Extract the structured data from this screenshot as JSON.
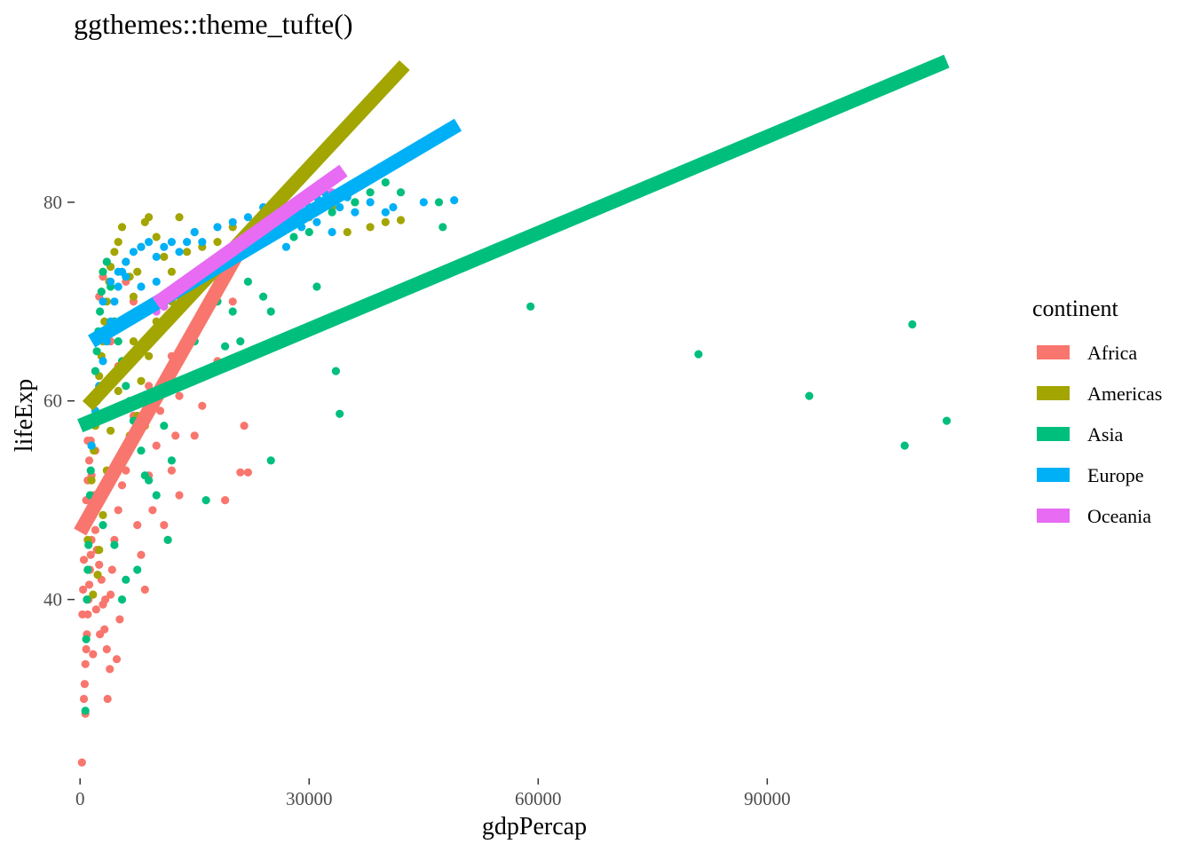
{
  "chart_data": {
    "type": "scatter",
    "title": "ggthemes::theme_tufte()",
    "xlabel": "gdpPercap",
    "ylabel": "lifeExp",
    "xlim": [
      -2000,
      121000
    ],
    "ylim": [
      22,
      95
    ],
    "x_ticks": [
      0,
      30000,
      60000,
      90000
    ],
    "x_tick_labels": [
      "0",
      "30000",
      "60000",
      "90000"
    ],
    "y_ticks": [
      40,
      60,
      80
    ],
    "y_tick_labels": [
      "40",
      "60",
      "80"
    ],
    "grid": false,
    "legend": {
      "title": "continent",
      "position": "right",
      "entries": [
        "Africa",
        "Americas",
        "Asia",
        "Europe",
        "Oceania"
      ]
    },
    "series": [
      {
        "name": "Africa",
        "color": "#F8766D",
        "fit_line": {
          "x": [
            0,
            21500
          ],
          "y": [
            46.8,
            76.0
          ]
        },
        "points": [
          [
            241,
            23.6
          ],
          [
            500,
            30.0
          ],
          [
            600,
            31.5
          ],
          [
            700,
            33.5
          ],
          [
            800,
            35.0
          ],
          [
            900,
            36.5
          ],
          [
            1000,
            38.5
          ],
          [
            1100,
            40.0
          ],
          [
            1200,
            41.5
          ],
          [
            1300,
            43.0
          ],
          [
            1400,
            44.5
          ],
          [
            1500,
            46.0
          ],
          [
            600,
            48.0
          ],
          [
            800,
            50.0
          ],
          [
            1000,
            52.0
          ],
          [
            1200,
            54.0
          ],
          [
            1400,
            56.0
          ],
          [
            1600,
            58.0
          ],
          [
            1800,
            50.5
          ],
          [
            2000,
            47.0
          ],
          [
            2200,
            45.0
          ],
          [
            2500,
            43.5
          ],
          [
            2800,
            42.0
          ],
          [
            3000,
            39.5
          ],
          [
            3200,
            37.0
          ],
          [
            3500,
            35.0
          ],
          [
            3600,
            30.0
          ],
          [
            3900,
            33.0
          ],
          [
            4000,
            40.5
          ],
          [
            4200,
            43.0
          ],
          [
            4500,
            46.0
          ],
          [
            5000,
            49.0
          ],
          [
            5500,
            51.5
          ],
          [
            6000,
            53.0
          ],
          [
            6500,
            56.0
          ],
          [
            7000,
            58.5
          ],
          [
            7500,
            47.5
          ],
          [
            8000,
            44.5
          ],
          [
            8500,
            41.0
          ],
          [
            9000,
            52.5
          ],
          [
            9500,
            49.0
          ],
          [
            10000,
            55.5
          ],
          [
            10500,
            59.0
          ],
          [
            11000,
            47.5
          ],
          [
            11500,
            46.0
          ],
          [
            12000,
            53.0
          ],
          [
            12500,
            56.5
          ],
          [
            13000,
            50.5
          ],
          [
            14000,
            62.0
          ],
          [
            15000,
            56.5
          ],
          [
            16000,
            59.5
          ],
          [
            18000,
            64.0
          ],
          [
            19000,
            50.0
          ],
          [
            20000,
            70.0
          ],
          [
            21000,
            52.8
          ],
          [
            21500,
            57.5
          ],
          [
            22000,
            52.8
          ],
          [
            2500,
            70.5
          ],
          [
            3000,
            72.5
          ],
          [
            3500,
            74.0
          ],
          [
            4000,
            66.0
          ],
          [
            4500,
            68.0
          ],
          [
            5000,
            63.5
          ],
          [
            6000,
            72.0
          ],
          [
            7000,
            70.0
          ],
          [
            8000,
            65.0
          ],
          [
            9000,
            61.5
          ],
          [
            12000,
            64.5
          ],
          [
            13000,
            60.5
          ],
          [
            2000,
            55.0
          ],
          [
            1500,
            52.5
          ],
          [
            1000,
            56.0
          ],
          [
            500,
            44.0
          ],
          [
            300,
            38.5
          ],
          [
            400,
            41.0
          ],
          [
            700,
            28.5
          ],
          [
            1700,
            34.5
          ],
          [
            2100,
            39.0
          ],
          [
            2600,
            36.5
          ],
          [
            3300,
            40.0
          ],
          [
            4800,
            34.0
          ],
          [
            5200,
            38.0
          ]
        ]
      },
      {
        "name": "Americas",
        "color": "#A3A500",
        "fit_line": {
          "x": [
            1000,
            42500
          ],
          "y": [
            59.5,
            93.8
          ]
        },
        "points": [
          [
            1000,
            46.0
          ],
          [
            1200,
            49.0
          ],
          [
            1500,
            52.0
          ],
          [
            1800,
            55.0
          ],
          [
            2000,
            57.5
          ],
          [
            2200,
            60.0
          ],
          [
            2500,
            62.5
          ],
          [
            2800,
            64.5
          ],
          [
            3000,
            66.0
          ],
          [
            3200,
            68.0
          ],
          [
            3500,
            70.0
          ],
          [
            3800,
            72.0
          ],
          [
            4000,
            73.5
          ],
          [
            4500,
            75.0
          ],
          [
            5000,
            76.0
          ],
          [
            5500,
            77.5
          ],
          [
            6000,
            74.0
          ],
          [
            6500,
            72.5
          ],
          [
            7000,
            70.5
          ],
          [
            7500,
            73.0
          ],
          [
            8000,
            75.5
          ],
          [
            8500,
            78.0
          ],
          [
            9000,
            78.5
          ],
          [
            10000,
            76.5
          ],
          [
            11000,
            74.5
          ],
          [
            12000,
            73.0
          ],
          [
            13000,
            78.5
          ],
          [
            14000,
            75.0
          ],
          [
            15000,
            77.0
          ],
          [
            16000,
            75.5
          ],
          [
            18000,
            76.0
          ],
          [
            20000,
            77.5
          ],
          [
            22000,
            77.0
          ],
          [
            25000,
            78.0
          ],
          [
            28000,
            79.0
          ],
          [
            30000,
            78.5
          ],
          [
            33000,
            79.5
          ],
          [
            35000,
            77.0
          ],
          [
            36000,
            80.0
          ],
          [
            38000,
            77.5
          ],
          [
            40000,
            78.0
          ],
          [
            42000,
            78.2
          ],
          [
            3000,
            48.5
          ],
          [
            3500,
            53.0
          ],
          [
            4000,
            57.0
          ],
          [
            5000,
            61.0
          ],
          [
            6000,
            63.5
          ],
          [
            7000,
            66.0
          ],
          [
            8000,
            62.0
          ],
          [
            9000,
            64.5
          ],
          [
            10000,
            68.0
          ],
          [
            11000,
            69.5
          ],
          [
            12000,
            70.0
          ],
          [
            6500,
            56.5
          ],
          [
            7500,
            58.5
          ],
          [
            8500,
            57.5
          ],
          [
            2500,
            45.0
          ],
          [
            1700,
            40.5
          ],
          [
            2300,
            42.5
          ]
        ]
      },
      {
        "name": "Asia",
        "color": "#00BF7D",
        "fit_line": {
          "x": [
            0,
            113500
          ],
          "y": [
            57.5,
            94.2
          ]
        },
        "points": [
          [
            700,
            28.8
          ],
          [
            800,
            36.0
          ],
          [
            900,
            40.0
          ],
          [
            1000,
            43.0
          ],
          [
            1100,
            45.5
          ],
          [
            1200,
            48.0
          ],
          [
            1300,
            50.5
          ],
          [
            1400,
            53.0
          ],
          [
            1500,
            55.5
          ],
          [
            1600,
            58.0
          ],
          [
            1800,
            60.5
          ],
          [
            2000,
            63.0
          ],
          [
            2200,
            65.0
          ],
          [
            2400,
            67.0
          ],
          [
            2600,
            69.0
          ],
          [
            2800,
            71.0
          ],
          [
            3000,
            73.0
          ],
          [
            3500,
            74.0
          ],
          [
            4000,
            71.5
          ],
          [
            4500,
            68.0
          ],
          [
            5000,
            66.0
          ],
          [
            5500,
            64.0
          ],
          [
            6000,
            61.5
          ],
          [
            6500,
            60.0
          ],
          [
            7000,
            58.0
          ],
          [
            7500,
            43.0
          ],
          [
            8000,
            55.0
          ],
          [
            8500,
            52.5
          ],
          [
            9000,
            52.0
          ],
          [
            10000,
            50.5
          ],
          [
            11000,
            57.5
          ],
          [
            11500,
            46.0
          ],
          [
            12000,
            54.0
          ],
          [
            13000,
            62.0
          ],
          [
            15000,
            66.0
          ],
          [
            18000,
            70.0
          ],
          [
            19000,
            65.5
          ],
          [
            20000,
            69.0
          ],
          [
            21000,
            66.0
          ],
          [
            22000,
            72.0
          ],
          [
            24000,
            70.5
          ],
          [
            25000,
            54.0
          ],
          [
            25000,
            69.0
          ],
          [
            28000,
            76.5
          ],
          [
            30000,
            77.0
          ],
          [
            31000,
            71.5
          ],
          [
            33000,
            79.0
          ],
          [
            33500,
            63.0
          ],
          [
            34000,
            58.7
          ],
          [
            36000,
            80.0
          ],
          [
            38000,
            81.0
          ],
          [
            40000,
            82.0
          ],
          [
            42000,
            81.0
          ],
          [
            47000,
            80.0
          ],
          [
            47500,
            77.5
          ],
          [
            59000,
            69.5
          ],
          [
            81000,
            64.7
          ],
          [
            95500,
            60.5
          ],
          [
            108000,
            55.5
          ],
          [
            109000,
            67.7
          ],
          [
            113500,
            58.0
          ],
          [
            5500,
            40.0
          ],
          [
            6000,
            42.0
          ],
          [
            16500,
            50.0
          ],
          [
            4500,
            45.5
          ],
          [
            3000,
            47.5
          ]
        ]
      },
      {
        "name": "Europe",
        "color": "#00B0F6",
        "fit_line": {
          "x": [
            1500,
            49500
          ],
          "y": [
            66.0,
            87.8
          ]
        },
        "points": [
          [
            1500,
            55.5
          ],
          [
            2000,
            59.0
          ],
          [
            2500,
            61.5
          ],
          [
            3000,
            64.0
          ],
          [
            3500,
            66.0
          ],
          [
            4000,
            68.0
          ],
          [
            4500,
            70.0
          ],
          [
            5000,
            71.5
          ],
          [
            5500,
            73.0
          ],
          [
            6000,
            74.0
          ],
          [
            7000,
            75.0
          ],
          [
            8000,
            75.5
          ],
          [
            9000,
            76.0
          ],
          [
            10000,
            74.5
          ],
          [
            11000,
            75.5
          ],
          [
            12000,
            76.0
          ],
          [
            13000,
            75.0
          ],
          [
            14000,
            76.0
          ],
          [
            15000,
            77.0
          ],
          [
            16000,
            76.0
          ],
          [
            18000,
            77.5
          ],
          [
            20000,
            78.0
          ],
          [
            22000,
            78.5
          ],
          [
            24000,
            79.5
          ],
          [
            26000,
            80.0
          ],
          [
            28000,
            79.0
          ],
          [
            30000,
            79.5
          ],
          [
            31000,
            80.5
          ],
          [
            32000,
            81.0
          ],
          [
            33000,
            80.0
          ],
          [
            34000,
            79.5
          ],
          [
            35000,
            80.5
          ],
          [
            36000,
            79.0
          ],
          [
            38000,
            80.0
          ],
          [
            40000,
            79.0
          ],
          [
            41000,
            79.5
          ],
          [
            45000,
            80.0
          ],
          [
            49000,
            80.2
          ],
          [
            25000,
            77.0
          ],
          [
            27000,
            75.5
          ],
          [
            29000,
            77.5
          ],
          [
            31000,
            78.0
          ],
          [
            33000,
            77.0
          ],
          [
            3000,
            70.0
          ],
          [
            4000,
            72.0
          ],
          [
            5000,
            73.0
          ],
          [
            6000,
            72.5
          ],
          [
            8000,
            71.5
          ],
          [
            10000,
            72.0
          ]
        ]
      },
      {
        "name": "Oceania",
        "color": "#E76BF3",
        "fit_line": {
          "x": [
            10000,
            34500
          ],
          "y": [
            69.8,
            83.2
          ]
        },
        "points": [
          [
            10000,
            69.0
          ],
          [
            11000,
            69.5
          ],
          [
            12000,
            70.5
          ],
          [
            13000,
            71.0
          ],
          [
            14000,
            71.5
          ],
          [
            15000,
            72.0
          ],
          [
            16000,
            73.0
          ],
          [
            18000,
            74.0
          ],
          [
            20000,
            75.0
          ],
          [
            22000,
            76.5
          ],
          [
            25000,
            78.5
          ],
          [
            28000,
            79.5
          ],
          [
            30000,
            80.5
          ],
          [
            33000,
            81.0
          ],
          [
            34500,
            81.2
          ]
        ]
      }
    ]
  }
}
